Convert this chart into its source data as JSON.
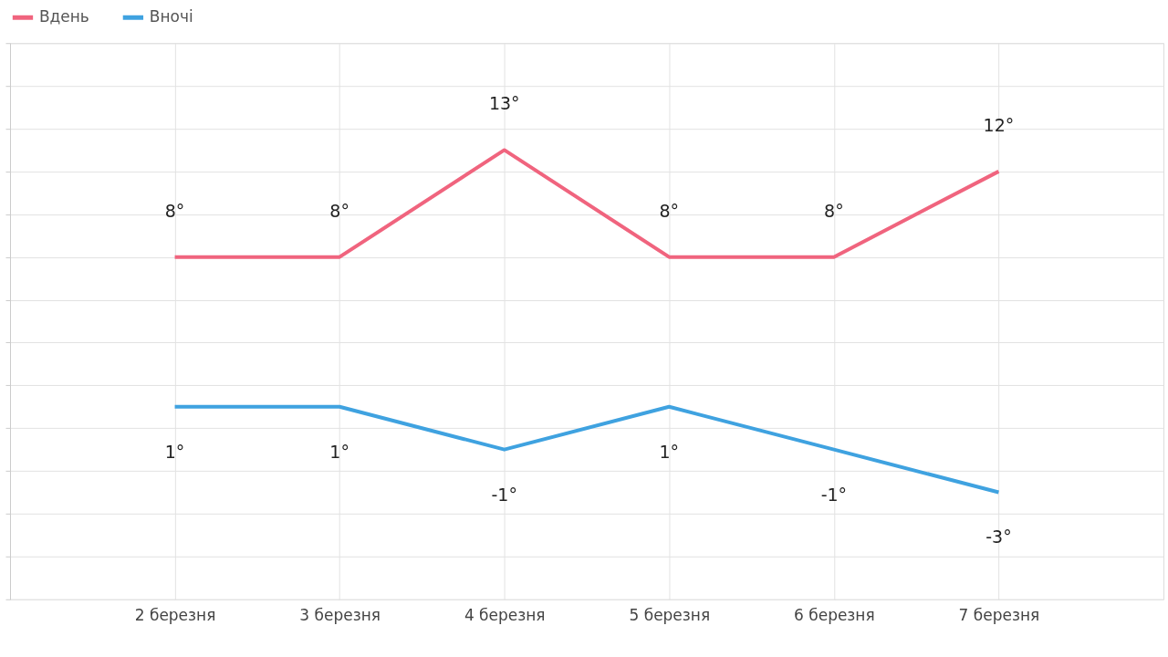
{
  "chart_data": {
    "type": "line",
    "categories": [
      "2 березня",
      "3 березня",
      "4 березня",
      "5 березня",
      "6 березня",
      "7 березня"
    ],
    "series": [
      {
        "name": "Вдень",
        "color": "#f0647e",
        "values": [
          8,
          8,
          13,
          8,
          8,
          12
        ],
        "value_labels": [
          "8°",
          "8°",
          "13°",
          "8°",
          "8°",
          "12°"
        ]
      },
      {
        "name": "Вночі",
        "color": "#3fa2e0",
        "values": [
          1,
          1,
          -1,
          1,
          -1,
          -3
        ],
        "value_labels": [
          "1°",
          "1°",
          "-1°",
          "1°",
          "-1°",
          "-3°"
        ]
      }
    ],
    "ylim": [
      -8,
      18
    ],
    "yticks": [
      {
        "value": -8,
        "label": null
      },
      {
        "value": -6,
        "label": null
      },
      {
        "value": -4,
        "label": null
      },
      {
        "value": -2,
        "label": null
      },
      {
        "value": 0,
        "label": null
      },
      {
        "value": 2,
        "label": null
      },
      {
        "value": 4,
        "label": null
      },
      {
        "value": 6,
        "label": null
      },
      {
        "value": 8,
        "label": null
      },
      {
        "value": 10,
        "label": null
      },
      {
        "value": 12,
        "label": null
      },
      {
        "value": 14,
        "label": null
      },
      {
        "value": 16,
        "label": null
      },
      {
        "value": 18,
        "label": null
      }
    ],
    "tick_labels": "x",
    "grid": true,
    "legend": "top left",
    "marker": "none",
    "line_style": "solid"
  }
}
